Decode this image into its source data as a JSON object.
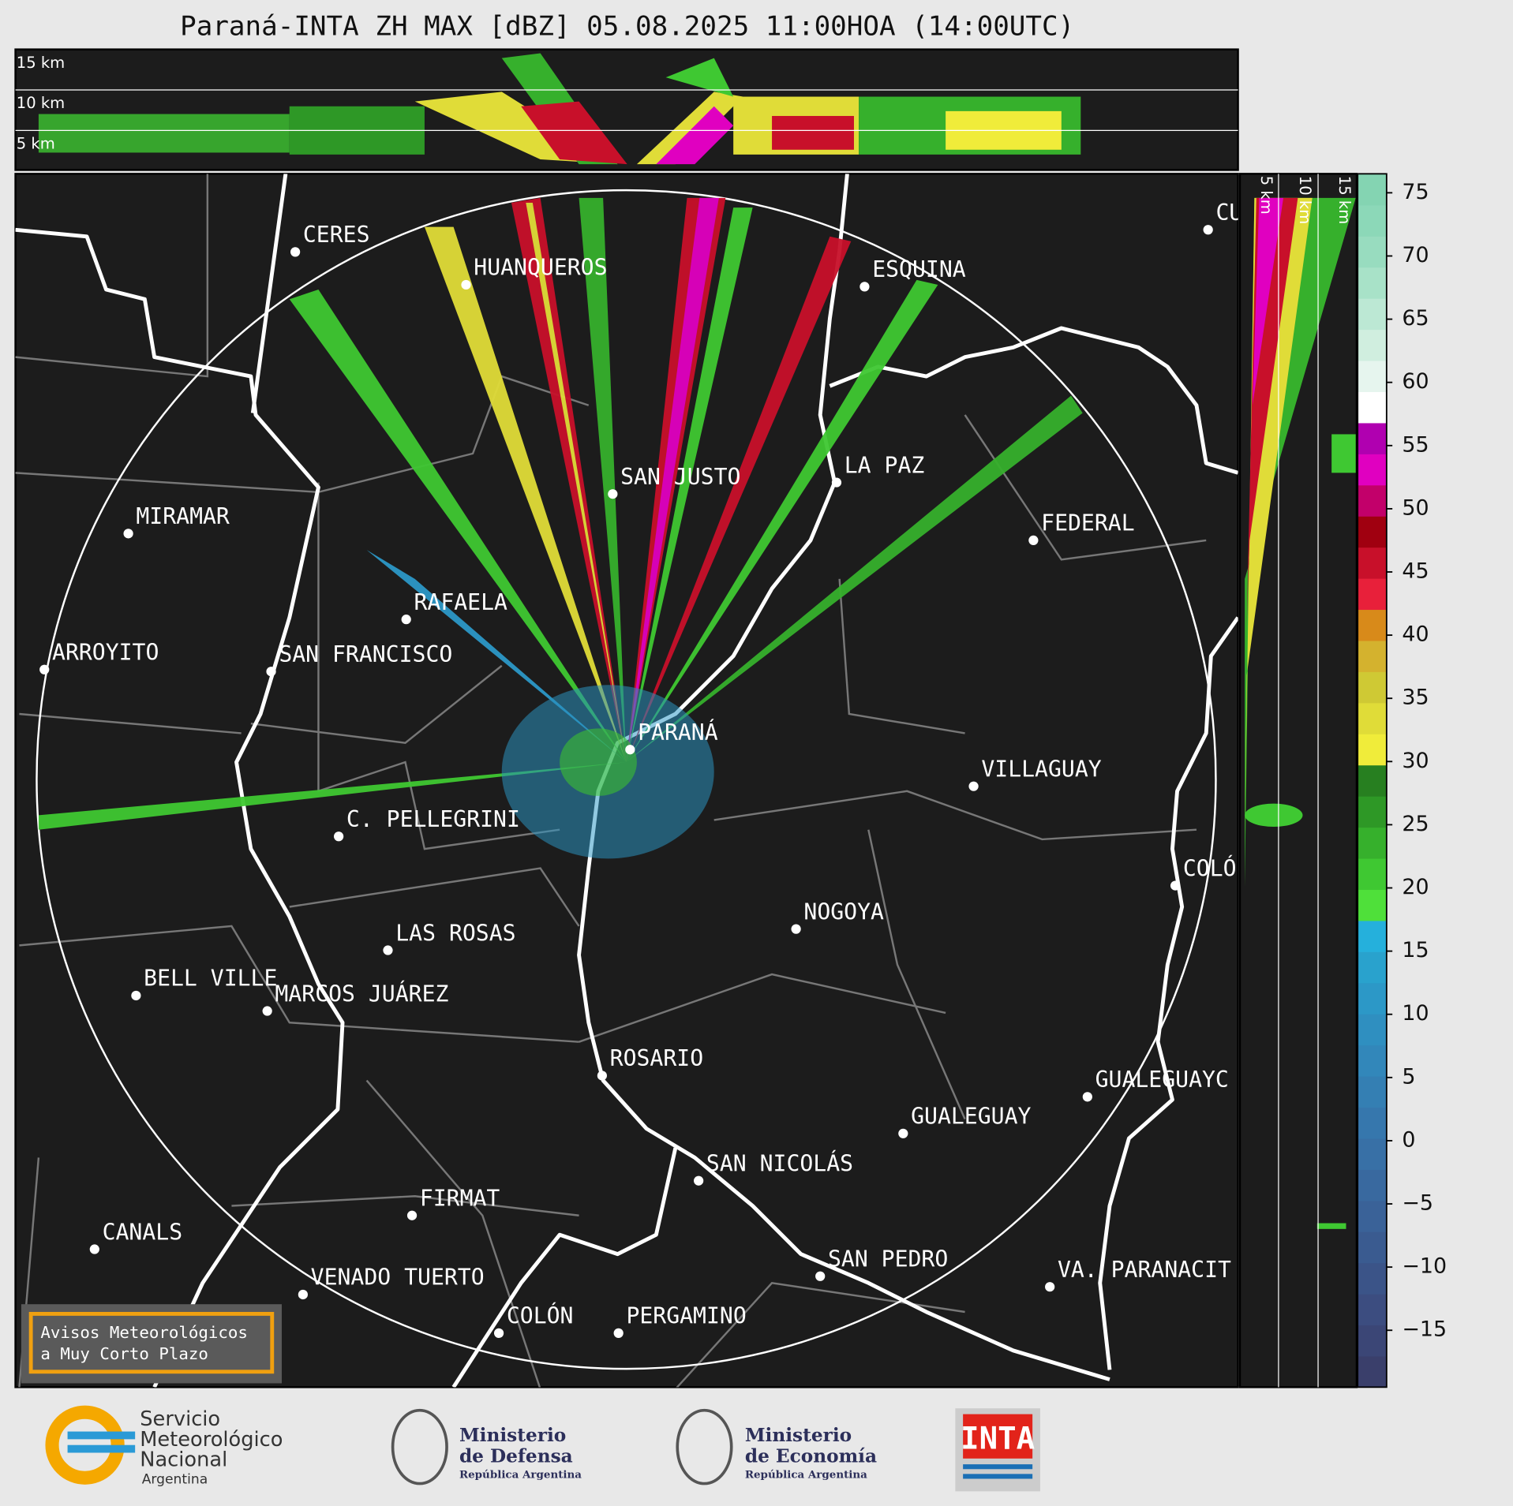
{
  "title": "Paraná-INTA ZH MAX [dBZ] 05.08.2025 11:00HOA (14:00UTC)",
  "top_panel": {
    "height_labels": [
      "15 km",
      "10 km",
      "5 km"
    ]
  },
  "side_panel": {
    "height_labels": [
      "5 km",
      "10 km",
      "15 km"
    ]
  },
  "map": {
    "cities": [
      "CERES",
      "HUANQUEROS",
      "ESQUINA",
      "CU",
      "SAN JUSTO",
      "LA PAZ",
      "MIRAMAR",
      "FEDERAL",
      "RAFAELA",
      "ARROYITO",
      "SAN FRANCISCO",
      "PARANÁ",
      "VILLAGUAY",
      "C. PELLEGRINI",
      "COLÓ",
      "NOGOYA",
      "LAS ROSAS",
      "BELL VILLE",
      "MARCOS JUÁREZ",
      "ROSARIO",
      "GUALEGUAYC",
      "GUALEGUAY",
      "SAN NICOLÁS",
      "FIRMAT",
      "CANALS",
      "SAN PEDRO",
      "VA. PARANACIT",
      "VENADO TUERTO",
      "COLÓN",
      "PERGAMINO"
    ],
    "notice": [
      "Avisos Meteorológicos",
      "a Muy Corto Plazo"
    ]
  },
  "colorbar": {
    "lim": [
      -19.5,
      76.5
    ],
    "ticks": [
      {
        "value": -15,
        "label": "−15"
      },
      {
        "value": -10,
        "label": "−10"
      },
      {
        "value": -5,
        "label": "−5"
      },
      0,
      5,
      10,
      15,
      20,
      25,
      30,
      35,
      40,
      45,
      50,
      55,
      60,
      65,
      70,
      75
    ],
    "colors": [
      "#3a3f6b",
      "#3b4676",
      "#3c4d80",
      "#3b5488",
      "#3a5b90",
      "#3a6298",
      "#39699f",
      "#3870a6",
      "#3677ad",
      "#347fb3",
      "#3287ba",
      "#2f8fc0",
      "#2c98c7",
      "#29a2cd",
      "#25b0dc",
      "#4fe03a",
      "#3fc832",
      "#36b02c",
      "#2e9826",
      "#277f20",
      "#f0ec3a",
      "#e0dc38",
      "#cfc934",
      "#d4b22e",
      "#d88a1a",
      "#e8203a",
      "#c8102a",
      "#a00010",
      "#c2006a",
      "#e000c0",
      "#b000b0",
      "#ffffff",
      "#e6f5ee",
      "#d0eedf",
      "#bce8d4",
      "#a8e2c8",
      "#98dcbf",
      "#8cd8b8",
      "#84d4b2"
    ]
  },
  "footer": {
    "smn": [
      "Servicio",
      "Meteorológico",
      "Nacional",
      "Argentina"
    ],
    "defensa": [
      "Ministerio",
      "de Defensa",
      "República Argentina"
    ],
    "economia": [
      "Ministerio",
      "de Economía",
      "República Argentina"
    ],
    "inta": "INTA"
  }
}
